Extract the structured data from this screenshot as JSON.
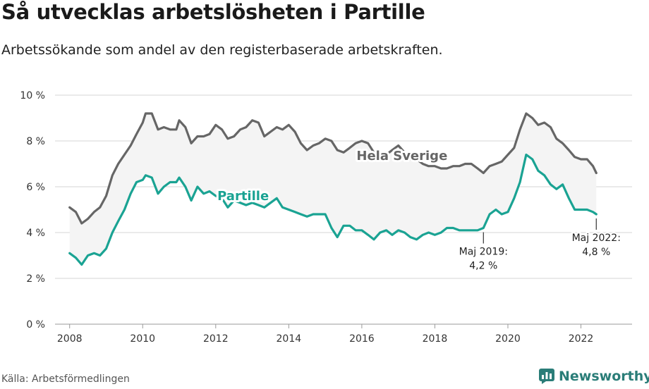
{
  "header": {
    "title": "Så utvecklas arbetslösheten i Partille",
    "subtitle": "Arbetssökande som andel av den registerbaserade arbetskraften."
  },
  "footer": {
    "source": "Källa: Arbetsförmedlingen",
    "brand": "Newsworthy"
  },
  "colors": {
    "partille": "#1aa393",
    "sverige": "#666666",
    "band": "#f4f4f4",
    "grid": "#d4d4d4",
    "brand": "#2a7d78"
  },
  "chart_data": {
    "type": "line",
    "title": "Så utvecklas arbetslösheten i Partille",
    "xlabel": "",
    "ylabel": "",
    "xlim": [
      2007.6,
      2023.4
    ],
    "ylim": [
      0,
      10
    ],
    "x_ticks": [
      2008,
      2010,
      2012,
      2014,
      2016,
      2018,
      2020,
      2022
    ],
    "y_ticks": [
      {
        "value": 0,
        "label": "0 %"
      },
      {
        "value": 2,
        "label": "2 %"
      },
      {
        "value": 4,
        "label": "4 %"
      },
      {
        "value": 6,
        "label": "6 %"
      },
      {
        "value": 8,
        "label": "8 %"
      },
      {
        "value": 10,
        "label": "10 %"
      }
    ],
    "series": [
      {
        "name": "Hela Sverige",
        "label": "Hela Sverige",
        "points": [
          [
            2008.0,
            5.1
          ],
          [
            2008.17,
            4.9
          ],
          [
            2008.33,
            4.4
          ],
          [
            2008.5,
            4.6
          ],
          [
            2008.67,
            4.9
          ],
          [
            2008.83,
            5.1
          ],
          [
            2009.0,
            5.6
          ],
          [
            2009.17,
            6.5
          ],
          [
            2009.33,
            7.0
          ],
          [
            2009.5,
            7.4
          ],
          [
            2009.67,
            7.8
          ],
          [
            2009.83,
            8.3
          ],
          [
            2010.0,
            8.8
          ],
          [
            2010.08,
            9.2
          ],
          [
            2010.25,
            9.2
          ],
          [
            2010.42,
            8.5
          ],
          [
            2010.58,
            8.6
          ],
          [
            2010.75,
            8.5
          ],
          [
            2010.92,
            8.5
          ],
          [
            2011.0,
            8.9
          ],
          [
            2011.17,
            8.6
          ],
          [
            2011.33,
            7.9
          ],
          [
            2011.5,
            8.2
          ],
          [
            2011.67,
            8.2
          ],
          [
            2011.83,
            8.3
          ],
          [
            2012.0,
            8.7
          ],
          [
            2012.17,
            8.5
          ],
          [
            2012.33,
            8.1
          ],
          [
            2012.5,
            8.2
          ],
          [
            2012.67,
            8.5
          ],
          [
            2012.83,
            8.6
          ],
          [
            2013.0,
            8.9
          ],
          [
            2013.17,
            8.8
          ],
          [
            2013.33,
            8.2
          ],
          [
            2013.5,
            8.4
          ],
          [
            2013.67,
            8.6
          ],
          [
            2013.83,
            8.5
          ],
          [
            2014.0,
            8.7
          ],
          [
            2014.17,
            8.4
          ],
          [
            2014.33,
            7.9
          ],
          [
            2014.5,
            7.6
          ],
          [
            2014.67,
            7.8
          ],
          [
            2014.83,
            7.9
          ],
          [
            2015.0,
            8.1
          ],
          [
            2015.17,
            8.0
          ],
          [
            2015.33,
            7.6
          ],
          [
            2015.5,
            7.5
          ],
          [
            2015.67,
            7.7
          ],
          [
            2015.83,
            7.9
          ],
          [
            2016.0,
            8.0
          ],
          [
            2016.17,
            7.9
          ],
          [
            2016.33,
            7.5
          ],
          [
            2016.5,
            7.5
          ],
          [
            2016.67,
            7.4
          ],
          [
            2016.83,
            7.6
          ],
          [
            2017.0,
            7.8
          ],
          [
            2017.17,
            7.5
          ],
          [
            2017.33,
            7.2
          ],
          [
            2017.5,
            7.2
          ],
          [
            2017.67,
            7.0
          ],
          [
            2017.83,
            6.9
          ],
          [
            2018.0,
            6.9
          ],
          [
            2018.17,
            6.8
          ],
          [
            2018.33,
            6.8
          ],
          [
            2018.5,
            6.9
          ],
          [
            2018.67,
            6.9
          ],
          [
            2018.83,
            7.0
          ],
          [
            2019.0,
            7.0
          ],
          [
            2019.17,
            6.8
          ],
          [
            2019.33,
            6.6
          ],
          [
            2019.5,
            6.9
          ],
          [
            2019.67,
            7.0
          ],
          [
            2019.83,
            7.1
          ],
          [
            2020.0,
            7.4
          ],
          [
            2020.17,
            7.7
          ],
          [
            2020.33,
            8.5
          ],
          [
            2020.5,
            9.2
          ],
          [
            2020.67,
            9.0
          ],
          [
            2020.83,
            8.7
          ],
          [
            2021.0,
            8.8
          ],
          [
            2021.17,
            8.6
          ],
          [
            2021.33,
            8.1
          ],
          [
            2021.5,
            7.9
          ],
          [
            2021.67,
            7.6
          ],
          [
            2021.83,
            7.3
          ],
          [
            2022.0,
            7.2
          ],
          [
            2022.17,
            7.2
          ],
          [
            2022.33,
            6.9
          ],
          [
            2022.42,
            6.6
          ]
        ]
      },
      {
        "name": "Partille",
        "label": "Partille",
        "points": [
          [
            2008.0,
            3.1
          ],
          [
            2008.17,
            2.9
          ],
          [
            2008.33,
            2.6
          ],
          [
            2008.5,
            3.0
          ],
          [
            2008.67,
            3.1
          ],
          [
            2008.83,
            3.0
          ],
          [
            2009.0,
            3.3
          ],
          [
            2009.17,
            4.0
          ],
          [
            2009.33,
            4.5
          ],
          [
            2009.5,
            5.0
          ],
          [
            2009.67,
            5.7
          ],
          [
            2009.83,
            6.2
          ],
          [
            2010.0,
            6.3
          ],
          [
            2010.08,
            6.5
          ],
          [
            2010.25,
            6.4
          ],
          [
            2010.42,
            5.7
          ],
          [
            2010.58,
            6.0
          ],
          [
            2010.75,
            6.2
          ],
          [
            2010.92,
            6.2
          ],
          [
            2011.0,
            6.4
          ],
          [
            2011.17,
            6.0
          ],
          [
            2011.33,
            5.4
          ],
          [
            2011.5,
            6.0
          ],
          [
            2011.67,
            5.7
          ],
          [
            2011.83,
            5.8
          ],
          [
            2012.0,
            5.6
          ],
          [
            2012.17,
            5.5
          ],
          [
            2012.33,
            5.1
          ],
          [
            2012.5,
            5.4
          ],
          [
            2012.67,
            5.3
          ],
          [
            2012.83,
            5.2
          ],
          [
            2013.0,
            5.3
          ],
          [
            2013.17,
            5.2
          ],
          [
            2013.33,
            5.1
          ],
          [
            2013.5,
            5.3
          ],
          [
            2013.67,
            5.5
          ],
          [
            2013.83,
            5.1
          ],
          [
            2014.0,
            5.0
          ],
          [
            2014.17,
            4.9
          ],
          [
            2014.33,
            4.8
          ],
          [
            2014.5,
            4.7
          ],
          [
            2014.67,
            4.8
          ],
          [
            2014.83,
            4.8
          ],
          [
            2015.0,
            4.8
          ],
          [
            2015.17,
            4.2
          ],
          [
            2015.33,
            3.8
          ],
          [
            2015.5,
            4.3
          ],
          [
            2015.67,
            4.3
          ],
          [
            2015.83,
            4.1
          ],
          [
            2016.0,
            4.1
          ],
          [
            2016.17,
            3.9
          ],
          [
            2016.33,
            3.7
          ],
          [
            2016.5,
            4.0
          ],
          [
            2016.67,
            4.1
          ],
          [
            2016.83,
            3.9
          ],
          [
            2017.0,
            4.1
          ],
          [
            2017.17,
            4.0
          ],
          [
            2017.33,
            3.8
          ],
          [
            2017.5,
            3.7
          ],
          [
            2017.67,
            3.9
          ],
          [
            2017.83,
            4.0
          ],
          [
            2018.0,
            3.9
          ],
          [
            2018.17,
            4.0
          ],
          [
            2018.33,
            4.2
          ],
          [
            2018.5,
            4.2
          ],
          [
            2018.67,
            4.1
          ],
          [
            2018.83,
            4.1
          ],
          [
            2019.0,
            4.1
          ],
          [
            2019.17,
            4.1
          ],
          [
            2019.33,
            4.2
          ],
          [
            2019.5,
            4.8
          ],
          [
            2019.67,
            5.0
          ],
          [
            2019.83,
            4.8
          ],
          [
            2020.0,
            4.9
          ],
          [
            2020.17,
            5.5
          ],
          [
            2020.33,
            6.2
          ],
          [
            2020.5,
            7.4
          ],
          [
            2020.67,
            7.2
          ],
          [
            2020.83,
            6.7
          ],
          [
            2021.0,
            6.5
          ],
          [
            2021.17,
            6.1
          ],
          [
            2021.33,
            5.9
          ],
          [
            2021.5,
            6.1
          ],
          [
            2021.67,
            5.5
          ],
          [
            2021.83,
            5.0
          ],
          [
            2022.0,
            5.0
          ],
          [
            2022.17,
            5.0
          ],
          [
            2022.33,
            4.9
          ],
          [
            2022.42,
            4.8
          ]
        ]
      }
    ],
    "annotations": [
      {
        "x": 2019.33,
        "y": 4.2,
        "lines": [
          "Maj 2019:",
          "4,2 %"
        ]
      },
      {
        "x": 2022.42,
        "y": 4.8,
        "lines": [
          "Maj 2022:",
          "4,8 %"
        ]
      }
    ],
    "series_labels": [
      {
        "series": "Hela Sverige",
        "x": 2017.1,
        "y": 7.35
      },
      {
        "series": "Partille",
        "x": 2012.75,
        "y": 5.6
      }
    ]
  }
}
